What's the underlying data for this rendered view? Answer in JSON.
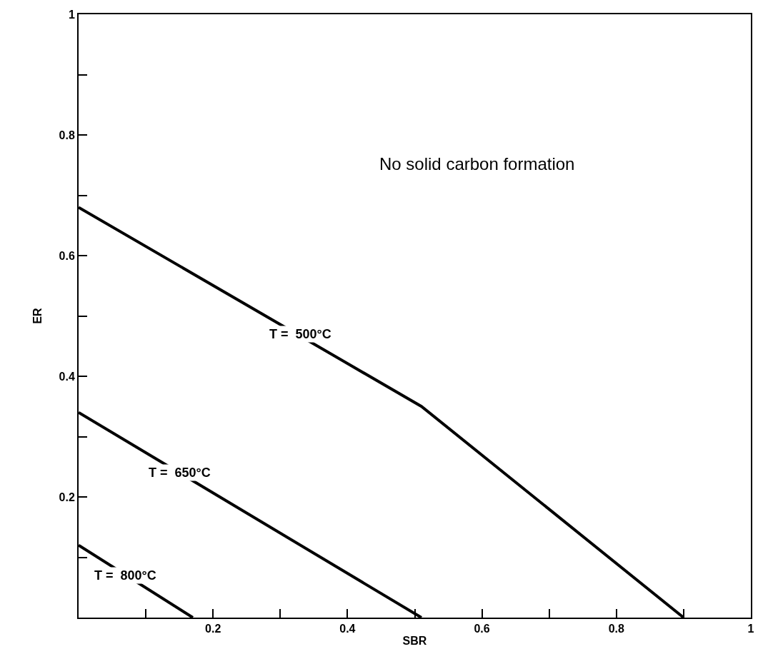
{
  "chart_data": {
    "type": "line",
    "xlabel": "SBR",
    "ylabel": "ER",
    "series": [
      {
        "color": "#000000",
        "x": [
          0,
          0.51,
          0.9
        ],
        "values": [
          0.68,
          0.35,
          0
        ]
      },
      {
        "color": "#000000",
        "x": [
          0,
          0.51
        ],
        "values": [
          0.34,
          0
        ]
      },
      {
        "color": "#000000",
        "x": [
          0,
          0.17
        ],
        "values": [
          0.12,
          0
        ]
      }
    ],
    "xlim": [
      0,
      1
    ],
    "ylim": [
      0,
      1
    ],
    "xticks": [
      {
        "value": 0.1,
        "label": null
      },
      0.2,
      {
        "value": 0.3,
        "label": null
      },
      0.4,
      {
        "value": 0.5,
        "label": null
      },
      0.6,
      {
        "value": 0.7,
        "label": null
      },
      0.8,
      {
        "value": 0.9,
        "label": null
      },
      1
    ],
    "yticks": [
      {
        "value": 0.1,
        "label": null
      },
      0.2,
      {
        "value": 0.3,
        "label": null
      },
      0.4,
      {
        "value": 0.5,
        "label": null
      },
      0.6,
      {
        "value": 0.7,
        "label": null
      },
      0.8,
      {
        "value": 0.9,
        "label": null
      },
      1
    ],
    "annotations": [
      {
        "text": "T =  500°C",
        "x": 0.33,
        "y": 0.47
      },
      {
        "text": "T =  650°C",
        "x": 0.15,
        "y": 0.24
      },
      {
        "text": "T =  800°C",
        "x": 0.07,
        "y": 0.07
      },
      "No solid carbon formation"
    ],
    "marker": "none",
    "line_style": "solid"
  }
}
